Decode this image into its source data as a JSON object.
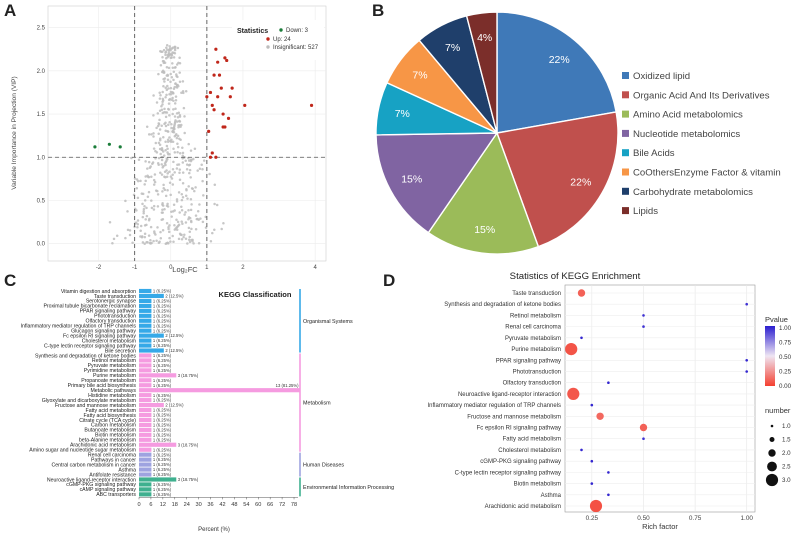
{
  "panel_labels": [
    "A",
    "B",
    "C",
    "D"
  ],
  "colors": {
    "down": "#1b7d3a",
    "up": "#c0271b",
    "insignificant": "#bdbdbd",
    "pie": [
      "#3f79b8",
      "#c0504d",
      "#9bbb59",
      "#8064a2",
      "#17a2c4",
      "#f79646",
      "#1f3f6b",
      "#7b2e2a"
    ],
    "organismal": "#35a9e8",
    "metabolism": "#f59be0",
    "human": "#9ea3e0",
    "environmental": "#3fb08f",
    "pvalue_high": "#2b1ecf",
    "pvalue_low": "#f44030"
  },
  "chart_data": [
    {
      "id": "A",
      "type": "scatter",
      "title": "",
      "xlabel": "Log₂FC",
      "ylabel": "Variable Importance in Projection (VIP)",
      "xlim": [
        -3.4,
        4.3
      ],
      "ylim": [
        -0.2,
        2.75
      ],
      "x_ticks": [
        "-2",
        "-1",
        "0",
        "1",
        "2",
        "4"
      ],
      "y_ticks": [
        "0.0",
        "0.5",
        "1.0",
        "1.5",
        "2.0",
        "2.5"
      ],
      "thresholds": {
        "vip": 1.0,
        "log2fc": [
          -1,
          1
        ]
      },
      "legend_title": "Statistics",
      "legend": [
        "Down: 3",
        "Up: 24",
        "Insignificant: 527"
      ],
      "down": [
        [
          -2.1,
          1.12
        ],
        [
          -1.7,
          1.15
        ],
        [
          -1.4,
          1.12
        ]
      ],
      "up": [
        [
          1.1,
          1.75
        ],
        [
          1.15,
          1.6
        ],
        [
          1.2,
          1.55
        ],
        [
          1.25,
          2.25
        ],
        [
          1.3,
          2.1
        ],
        [
          1.35,
          1.95
        ],
        [
          1.4,
          1.8
        ],
        [
          1.05,
          1.3
        ],
        [
          1.5,
          2.15
        ],
        [
          1.55,
          2.12
        ],
        [
          1.6,
          1.45
        ],
        [
          1.45,
          1.35
        ],
        [
          1.5,
          1.35
        ],
        [
          1.7,
          1.8
        ],
        [
          1.65,
          1.7
        ],
        [
          2.05,
          1.6
        ],
        [
          3.9,
          1.6
        ],
        [
          1.15,
          1.05
        ],
        [
          1.25,
          1.0
        ],
        [
          1.1,
          1.0
        ],
        [
          1.2,
          1.95
        ],
        [
          1.0,
          1.7
        ],
        [
          1.3,
          1.7
        ],
        [
          1.45,
          1.5
        ]
      ],
      "insignificant_count": 527
    },
    {
      "id": "B",
      "type": "pie",
      "labels": [
        "Oxidized lipid",
        "Organic Acid And  Its Derivatives",
        "Amino Acid  metabolomics",
        "Nucleotide metabolomics",
        "Bile Acids",
        "CoOthersEnzyme Factor & vitamin",
        "Carbohydrate metabolomics",
        "Lipids"
      ],
      "values": [
        22,
        22,
        15,
        15,
        7,
        7,
        7,
        4
      ],
      "value_labels": [
        "22%",
        "22%",
        "15%",
        "15%",
        "7%",
        "7%",
        "7%",
        "4%"
      ]
    },
    {
      "id": "C",
      "type": "bar",
      "title": "KEGG Classification",
      "xlabel": "Percent (%)",
      "x_ticks": [
        "0",
        "6",
        "12",
        "18",
        "24",
        "30",
        "36",
        "42",
        "48",
        "54",
        "60",
        "66",
        "72",
        "78"
      ],
      "xlim": [
        0,
        80
      ],
      "categories": [
        "Vitamin digestion and absorption",
        "Taste transduction",
        "Serotonergic synapse",
        "Proximal tubule bicarbonate reclamation",
        "PPAR signaling pathway",
        "Phototransduction",
        "Olfactory transduction",
        "Inflammatory mediator regulation of TRP channels",
        "Glucagon signaling pathway",
        "Fc epsilon RI signaling pathway",
        "Cholesterol metabolism",
        "C-type lectin receptor signaling pathway",
        "Bile secretion",
        "Synthesis and degradation of ketone bodies",
        "Retinol metabolism",
        "Pyruvate metabolism",
        "Pyrimidine metabolism",
        "Purine metabolism",
        "Propanoate metabolism",
        "Primary bile acid biosynthesis",
        "Metabolic pathways",
        "Histidine metabolism",
        "Glyoxylate and dicarboxylate metabolism",
        "Fructose and mannose metabolism",
        "Fatty acid metabolism",
        "Fatty acid biosynthesis",
        "Citrate cycle (TCA cycle)",
        "Carbon metabolism",
        "Butanoate metabolism",
        "Biotin metabolism",
        "beta-Alanine metabolism",
        "Arachidonic acid metabolism",
        "Amino sugar and nucleotide sugar metabolism",
        "Renal cell carcinoma",
        "Pathways in cancer",
        "Central carbon metabolism in cancer",
        "Asthma",
        "Antifolate resistance",
        "Neuroactive ligand-receptor interaction",
        "cGMP-PKG signaling pathway",
        "cAMP signaling pathway",
        "ABC transporters"
      ],
      "counts": [
        1,
        2,
        1,
        1,
        1,
        1,
        1,
        1,
        1,
        2,
        1,
        1,
        2,
        1,
        1,
        1,
        1,
        3,
        1,
        1,
        13,
        1,
        1,
        2,
        1,
        1,
        1,
        1,
        1,
        1,
        1,
        3,
        1,
        1,
        1,
        1,
        1,
        1,
        3,
        1,
        1,
        1
      ],
      "percent": [
        6.25,
        12.5,
        6.25,
        6.25,
        6.25,
        6.25,
        6.25,
        6.25,
        6.25,
        12.5,
        6.25,
        6.25,
        12.5,
        6.25,
        6.25,
        6.25,
        6.25,
        18.75,
        6.25,
        6.25,
        81.25,
        6.25,
        6.25,
        12.5,
        6.25,
        6.25,
        6.25,
        6.25,
        6.25,
        6.25,
        6.25,
        18.75,
        6.25,
        6.25,
        6.25,
        6.25,
        6.25,
        6.25,
        18.75,
        6.25,
        6.25,
        6.25
      ],
      "bar_labels": [
        "1 (6.25%)",
        "2 (12.5%)",
        "1 (6.25%)",
        "1 (6.25%)",
        "1 (6.25%)",
        "1 (6.25%)",
        "1 (6.25%)",
        "1 (6.25%)",
        "1 (6.25%)",
        "2 (12.5%)",
        "1 (6.25%)",
        "1 (6.25%)",
        "2 (12.5%)",
        "1 (6.25%)",
        "1 (6.25%)",
        "1 (6.25%)",
        "1 (6.25%)",
        "3 (18.75%)",
        "1 (6.25%)",
        "1 (6.25%)",
        "13 (81.25%)",
        "1 (6.25%)",
        "1 (6.25%)",
        "2 (12.5%)",
        "1 (6.25%)",
        "1 (6.25%)",
        "1 (6.25%)",
        "1 (6.25%)",
        "1 (6.25%)",
        "1 (6.25%)",
        "1 (6.25%)",
        "3 (18.75%)",
        "1 (6.25%)",
        "1 (6.25%)",
        "1 (6.25%)",
        "1 (6.25%)",
        "1 (6.25%)",
        "1 (6.25%)",
        "3 (18.75%)",
        "1 (6.25%)",
        "1 (6.25%)",
        "1 (6.25%)"
      ],
      "groups": [
        {
          "name": "Organismal Systems",
          "start": 0,
          "end": 12
        },
        {
          "name": "Metabolism",
          "start": 13,
          "end": 32
        },
        {
          "name": "Human Diseases",
          "start": 33,
          "end": 37
        },
        {
          "name": "Environmental Information Processing",
          "start": 38,
          "end": 41
        }
      ]
    },
    {
      "id": "D",
      "type": "scatter",
      "title": "Statistics of KEGG Enrichment",
      "xlabel": "Rich factor",
      "x_ticks": [
        "0.25",
        "0.50",
        "0.75",
        "1.00"
      ],
      "xlim": [
        0.12,
        1.04
      ],
      "categories": [
        "Taste transduction",
        "Synthesis and degradation of ketone bodies",
        "Retinol metabolism",
        "Renal cell carcinoma",
        "Pyruvate metabolism",
        "Purine metabolism",
        "PPAR signaling pathway",
        "Phototransduction",
        "Olfactory transduction",
        "Neuroactive ligand-receptor interaction",
        "Inflammatory mediator regulation of TRP channels",
        "Fructose and mannose metabolism",
        "Fc epsilon RI signaling pathway",
        "Fatty acid metabolism",
        "Cholesterol metabolism",
        "cGMP-PKG signaling pathway",
        "C-type lectin receptor signaling pathway",
        "Biotin metabolism",
        "Asthma",
        "Arachidonic acid metabolism"
      ],
      "rich_factor": [
        0.2,
        1.0,
        0.5,
        0.5,
        0.2,
        0.15,
        1.0,
        1.0,
        0.33,
        0.16,
        0.25,
        0.29,
        0.5,
        0.5,
        0.2,
        0.25,
        0.33,
        0.25,
        0.33,
        0.27
      ],
      "number": [
        2,
        1,
        1,
        1,
        1,
        3,
        1,
        1,
        1,
        3,
        1,
        2,
        2,
        1,
        1,
        1,
        1,
        1,
        1,
        3
      ],
      "pvalue": [
        0.1,
        0.95,
        0.95,
        0.95,
        0.98,
        0.06,
        0.98,
        0.98,
        0.98,
        0.07,
        0.98,
        0.12,
        0.1,
        0.95,
        0.98,
        0.98,
        0.98,
        0.98,
        0.98,
        0.05
      ],
      "color_legend": {
        "title": "Pvalue",
        "ticks": [
          "1.00",
          "0.75",
          "0.50",
          "0.25",
          "0.00"
        ]
      },
      "size_legend": {
        "title": "number",
        "ticks": [
          "1.0",
          "1.5",
          "2.0",
          "2.5",
          "3.0"
        ]
      }
    }
  ]
}
